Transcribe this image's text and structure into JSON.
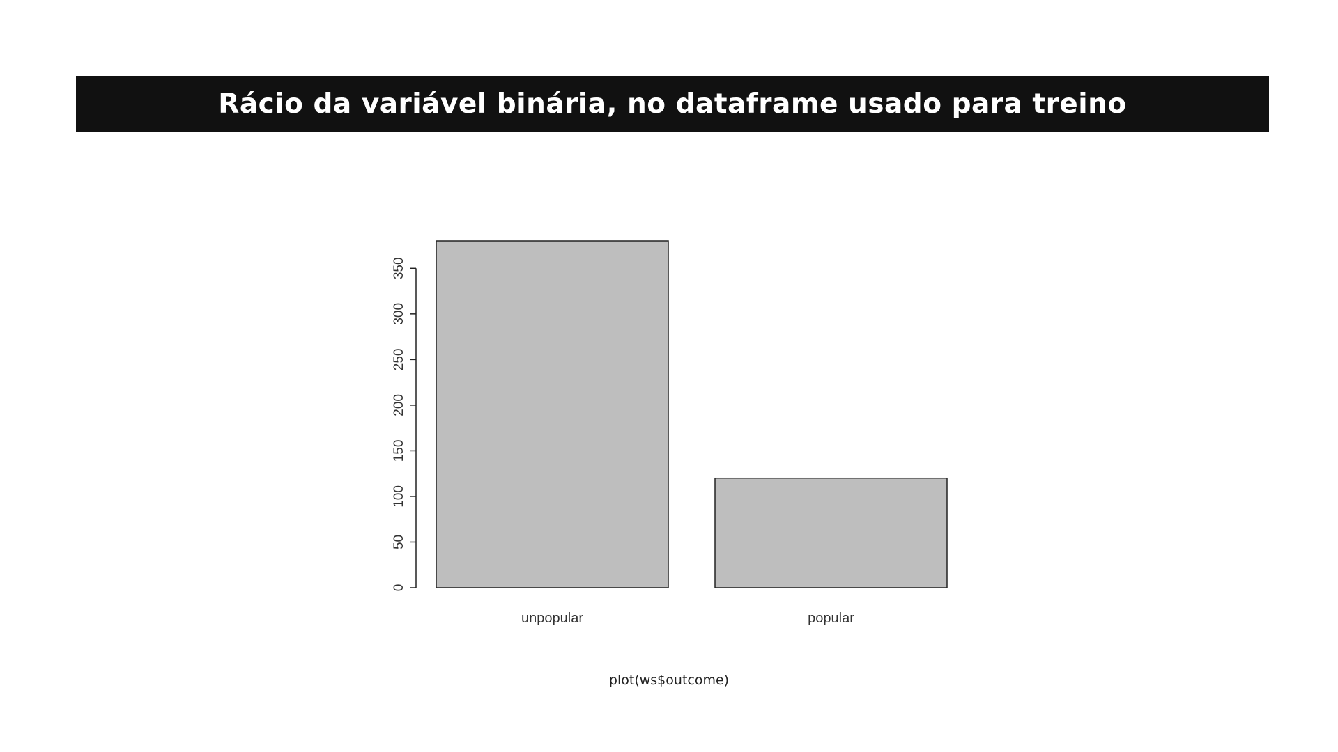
{
  "header": {
    "title": "Rácio da variável binária, no dataframe usado para treino"
  },
  "caption": "plot(ws$outcome)",
  "colors": {
    "banner_bg": "#111111",
    "banner_text": "#ffffff",
    "bar_fill": "#bebebe",
    "bar_stroke": "#222222",
    "axis": "#222222"
  },
  "chart_data": {
    "type": "bar",
    "categories": [
      "unpopular",
      "popular"
    ],
    "values": [
      380,
      120
    ],
    "title": "",
    "xlabel": "",
    "ylabel": "",
    "ylim": [
      0,
      380
    ],
    "yticks": [
      0,
      50,
      100,
      150,
      200,
      250,
      300,
      350
    ],
    "grid": false,
    "legend": "none"
  }
}
